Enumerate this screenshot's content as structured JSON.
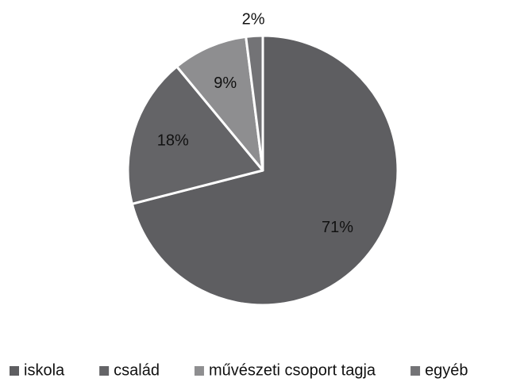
{
  "chart_data": {
    "type": "pie",
    "categories": [
      "iskola",
      "család",
      "művészeti csoport tagja",
      "egyéb"
    ],
    "values": [
      71,
      18,
      9,
      2
    ],
    "value_labels": [
      "71%",
      "18%",
      "9%",
      "2%"
    ],
    "colors": [
      "#5e5e61",
      "#646467",
      "#8e8e90",
      "#737376"
    ],
    "legend": "bottom"
  }
}
